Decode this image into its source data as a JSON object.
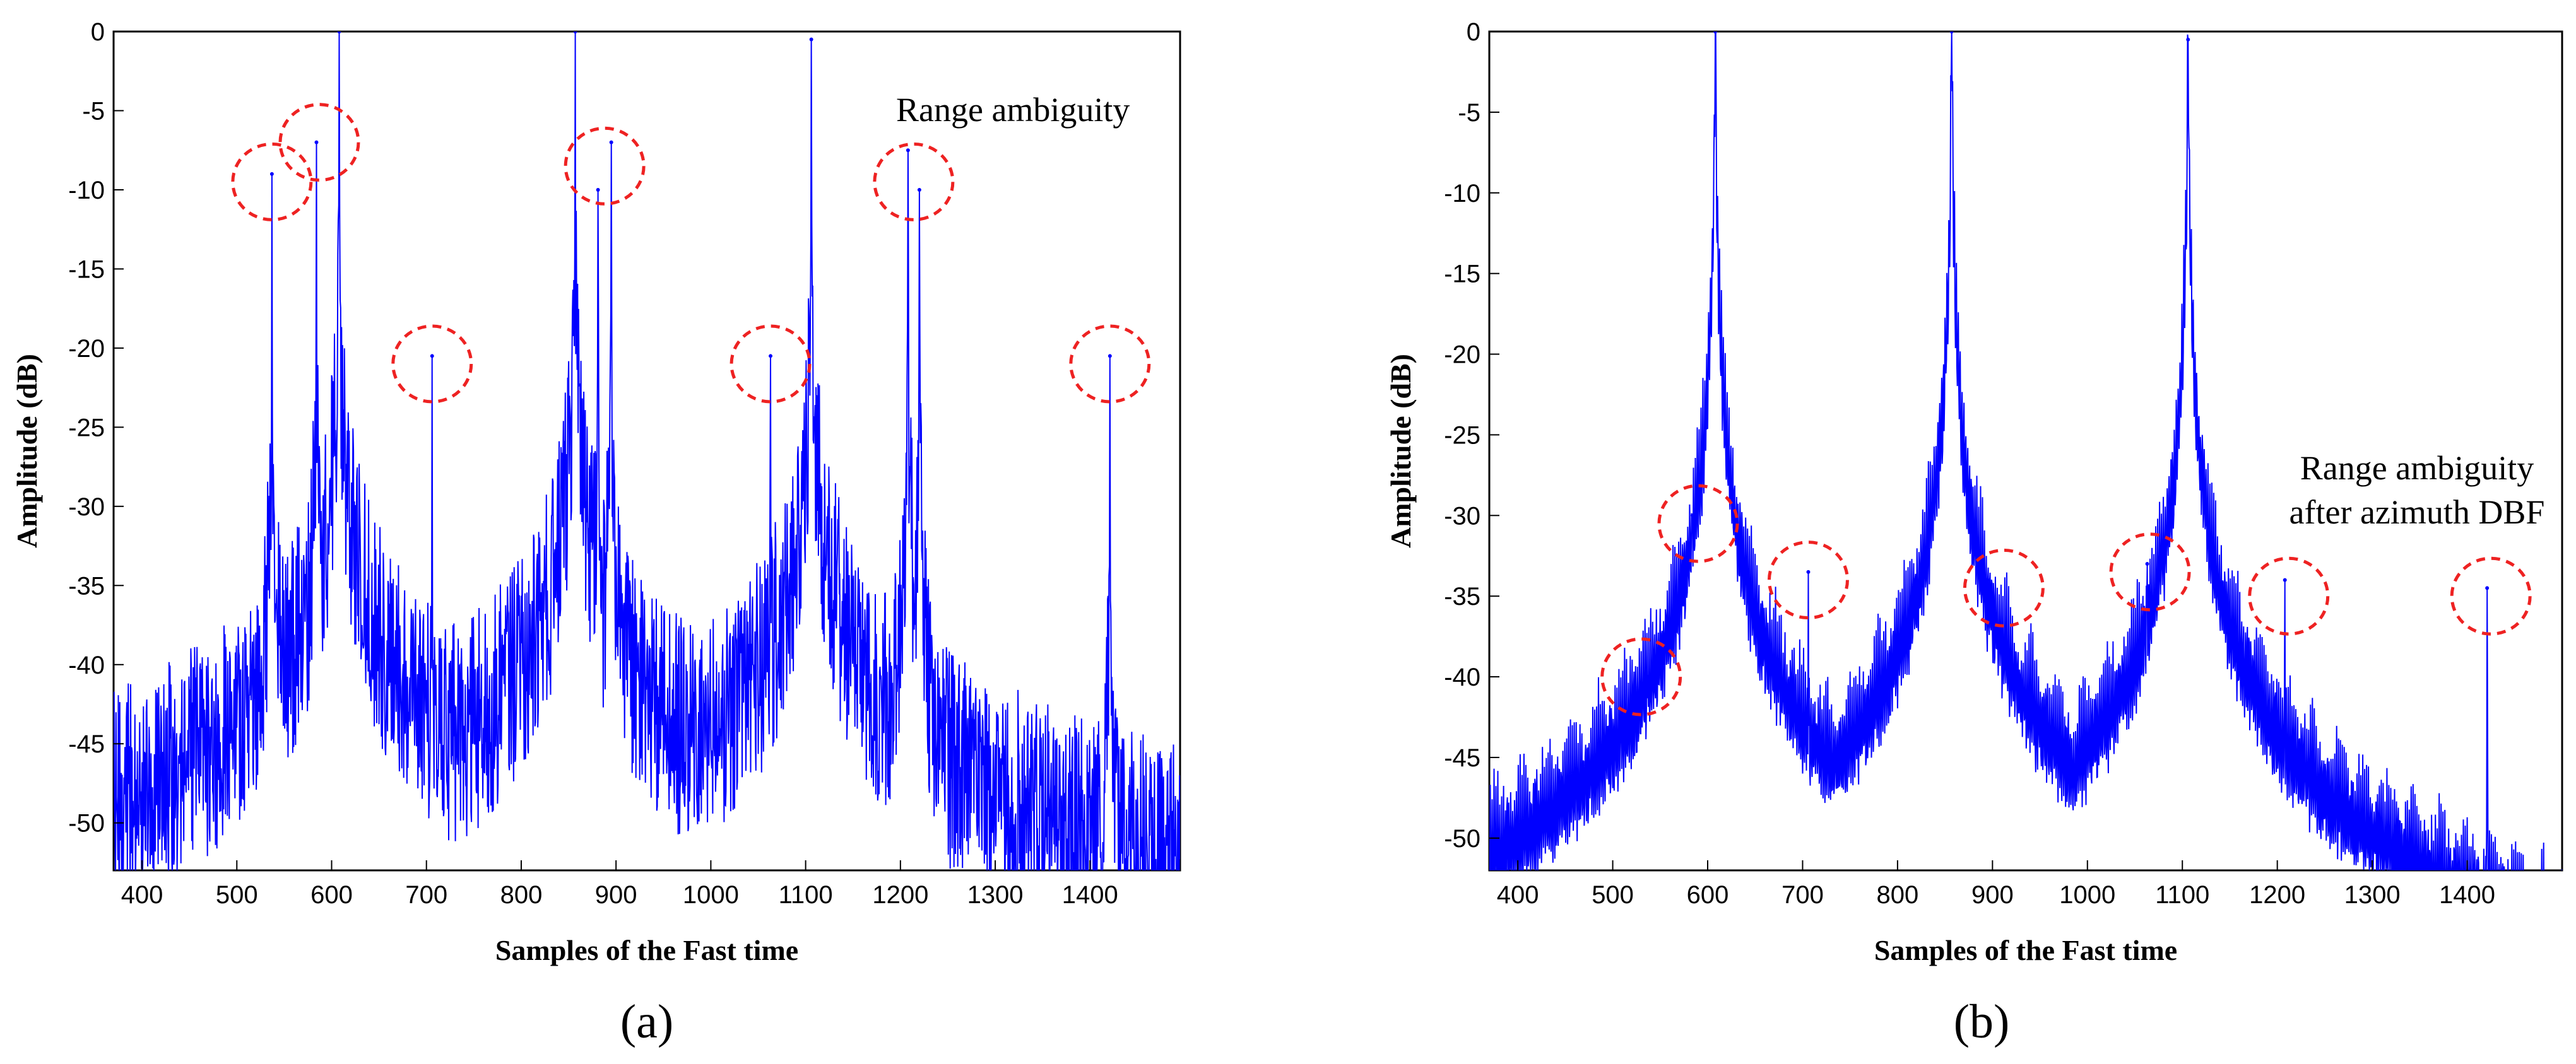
{
  "chart_data": [
    {
      "type": "line",
      "panel_label": "(a)",
      "xlabel": "Samples of the Fast time",
      "ylabel": "Amplitude (dB)",
      "xlim": [
        370,
        1495
      ],
      "ylim": [
        -53,
        0
      ],
      "xticks": [
        400,
        500,
        600,
        700,
        800,
        900,
        1000,
        1100,
        1200,
        1300,
        1400
      ],
      "yticks": [
        0,
        -5,
        -10,
        -15,
        -20,
        -25,
        -30,
        -35,
        -40,
        -45,
        -50
      ],
      "annotation": [
        "Range ambiguity"
      ],
      "color": "#0000ff",
      "highlight_color": "#ee2222",
      "main_peaks": [
        {
          "x": 608,
          "y": 0
        },
        {
          "x": 857,
          "y": 0
        },
        {
          "x": 1106,
          "y": -0.5
        }
      ],
      "ambiguity_peaks": [
        {
          "x": 537,
          "y": -9
        },
        {
          "x": 584,
          "y": -7
        },
        {
          "x": 706,
          "y": -20.5
        },
        {
          "x": 881,
          "y": -10
        },
        {
          "x": 895,
          "y": -7
        },
        {
          "x": 1063,
          "y": -20.5
        },
        {
          "x": 1208,
          "y": -7.5
        },
        {
          "x": 1220,
          "y": -10
        },
        {
          "x": 1421,
          "y": -20.5
        }
      ],
      "highlighted": [
        {
          "x": 537,
          "y": -9.5
        },
        {
          "x": 587,
          "y": -7
        },
        {
          "x": 706,
          "y": -21
        },
        {
          "x": 888,
          "y": -8.5
        },
        {
          "x": 1063,
          "y": -21
        },
        {
          "x": 1214,
          "y": -9.5
        },
        {
          "x": 1421,
          "y": -21
        }
      ]
    },
    {
      "type": "line",
      "panel_label": "(b)",
      "xlabel": "Samples of the Fast time",
      "ylabel": "Amplitude (dB)",
      "xlim": [
        370,
        1500
      ],
      "ylim": [
        -52,
        0
      ],
      "xticks": [
        400,
        500,
        600,
        700,
        800,
        900,
        1000,
        1100,
        1200,
        1300,
        1400
      ],
      "yticks": [
        0,
        -5,
        -10,
        -15,
        -20,
        -25,
        -30,
        -35,
        -40,
        -45,
        -50
      ],
      "annotation": [
        "Range ambiguity",
        "after azimuth DBF"
      ],
      "color": "#0000ff",
      "highlight_color": "#ee2222",
      "main_peaks": [
        {
          "x": 608,
          "y": 0
        },
        {
          "x": 857,
          "y": 0
        },
        {
          "x": 1106,
          "y": -0.5
        }
      ],
      "ambiguity_peaks": [
        {
          "x": 537,
          "y": -40
        },
        {
          "x": 584,
          "y": -30
        },
        {
          "x": 706,
          "y": -33.5
        },
        {
          "x": 895,
          "y": -34
        },
        {
          "x": 1063,
          "y": -33
        },
        {
          "x": 1208,
          "y": -34
        },
        {
          "x": 1421,
          "y": -34.5
        }
      ],
      "highlighted": [
        {
          "x": 530,
          "y": -40
        },
        {
          "x": 590,
          "y": -30.5
        },
        {
          "x": 706,
          "y": -34
        },
        {
          "x": 912,
          "y": -34.5
        },
        {
          "x": 1066,
          "y": -33.5
        },
        {
          "x": 1212,
          "y": -35
        },
        {
          "x": 1425,
          "y": -35
        }
      ]
    }
  ]
}
